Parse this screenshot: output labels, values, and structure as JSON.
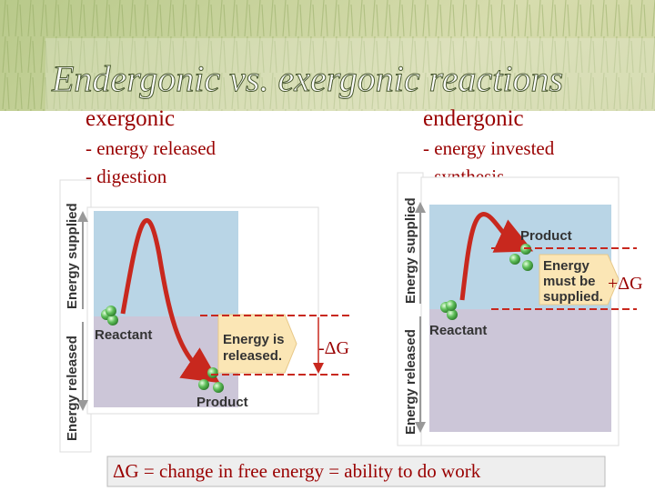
{
  "title": "Endergonic vs. exergonic reactions",
  "left": {
    "heading": "exergonic",
    "lines": [
      "- energy released",
      "- digestion"
    ],
    "diagram": {
      "axis_up": "Energy supplied",
      "axis_down": "Energy released",
      "reactant": "Reactant",
      "product": "Product",
      "note": [
        "Energy is",
        "released."
      ],
      "delta": "-ΔG"
    }
  },
  "right": {
    "heading": "endergonic",
    "lines": [
      "- energy invested",
      "- synthesis"
    ],
    "diagram": {
      "axis_up": "Energy supplied",
      "axis_down": "Energy released",
      "reactant": "Reactant",
      "product": "Product",
      "note": [
        "Energy",
        "must be",
        "supplied."
      ],
      "delta": "+ΔG"
    }
  },
  "footer": "ΔG = change in free energy = ability to do work"
}
